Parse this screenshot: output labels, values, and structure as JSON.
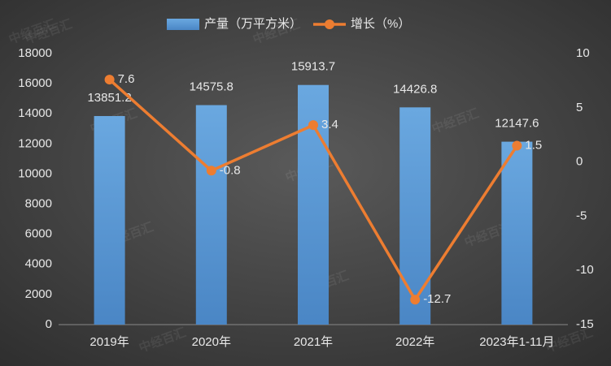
{
  "chart_data": {
    "type": "bar",
    "watermark": "中经百汇",
    "categories": [
      "2019年",
      "2020年",
      "2021年",
      "2022年",
      "2023年1-11月"
    ],
    "series": [
      {
        "name": "产量（万平方米）",
        "type": "bar",
        "color": "#5b9bd5",
        "values": [
          13851.2,
          14575.8,
          15913.7,
          14426.8,
          12147.6
        ]
      },
      {
        "name": "增长（%）",
        "type": "line",
        "axis": "y2",
        "color": "#ed7d31",
        "values": [
          7.6,
          -0.8,
          3.4,
          -12.7,
          1.5
        ]
      }
    ],
    "ylim": [
      0,
      18000
    ],
    "yticks": [
      0,
      2000,
      4000,
      6000,
      8000,
      10000,
      12000,
      14000,
      16000,
      18000
    ],
    "y2lim": [
      -15,
      10
    ],
    "y2ticks": [
      -15,
      -10,
      -5,
      0,
      5,
      10
    ],
    "grid": false
  }
}
